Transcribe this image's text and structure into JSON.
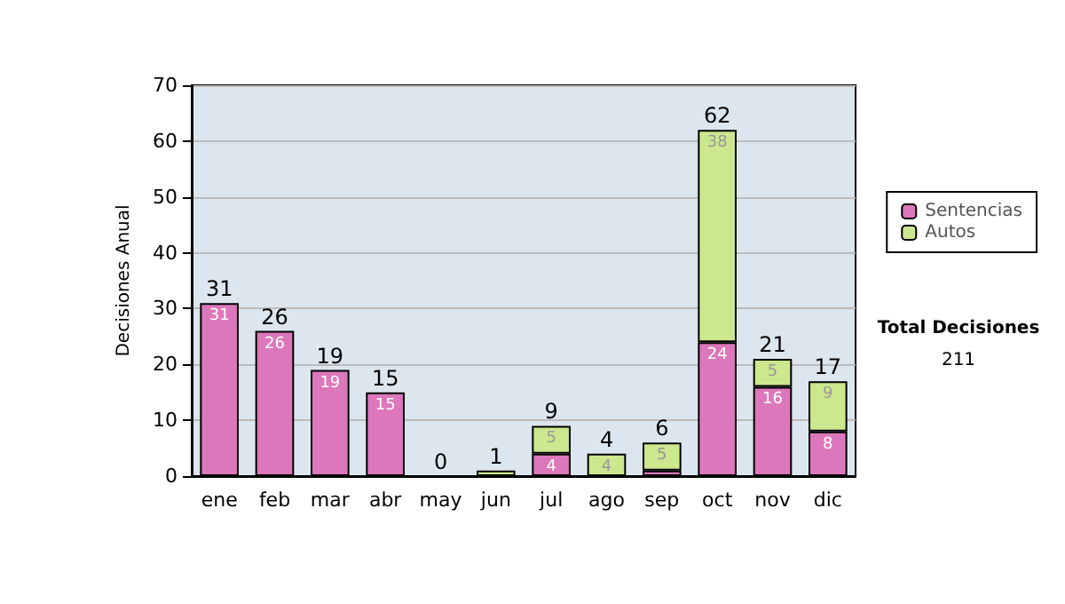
{
  "chart_data": {
    "type": "bar",
    "stacked": true,
    "ylabel": "Decisiones Anual",
    "categories": [
      "ene",
      "feb",
      "mar",
      "abr",
      "may",
      "jun",
      "jul",
      "ago",
      "sep",
      "oct",
      "nov",
      "dic"
    ],
    "series": [
      {
        "name": "Sentencias",
        "color": "#dd77bb",
        "values": [
          31,
          26,
          19,
          15,
          0,
          0,
          4,
          0,
          1,
          24,
          16,
          8
        ],
        "value_labels": [
          "31",
          "26",
          "19",
          "15",
          null,
          null,
          "4",
          null,
          null,
          "24",
          "16",
          "8"
        ]
      },
      {
        "name": "Autos",
        "color": "#cce88e",
        "values": [
          0,
          0,
          0,
          0,
          0,
          1,
          5,
          4,
          5,
          38,
          5,
          9
        ],
        "value_labels": [
          null,
          null,
          null,
          null,
          null,
          null,
          "5",
          "4",
          "5",
          "38",
          "5",
          "9"
        ]
      }
    ],
    "totals": [
      "31",
      "26",
      "19",
      "15",
      "0",
      "1",
      "9",
      "4",
      "6",
      "62",
      "21",
      "17"
    ],
    "ylim": [
      0,
      70
    ],
    "yticks": [
      0,
      10,
      20,
      30,
      40,
      50,
      60,
      70
    ],
    "grid": "y",
    "legend": "right",
    "annotations": [
      "Total Decisiones",
      "211"
    ]
  }
}
